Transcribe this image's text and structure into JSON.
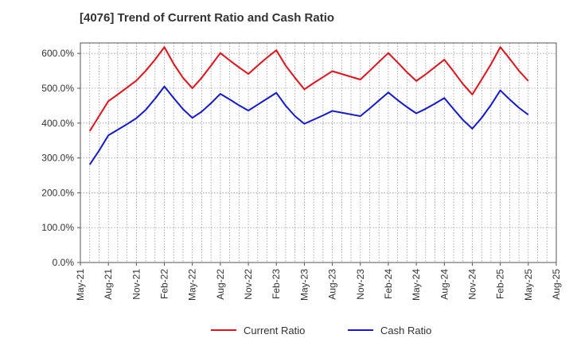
{
  "chart_data": {
    "type": "line",
    "title": "[4076]  Trend of Current Ratio and Cash Ratio",
    "xlabel": "",
    "ylabel": "",
    "ylim": [
      0,
      630
    ],
    "y_ticks": [
      0,
      100,
      200,
      300,
      400,
      500,
      600
    ],
    "y_tick_labels": [
      "0.0%",
      "100.0%",
      "200.0%",
      "300.0%",
      "400.0%",
      "500.0%",
      "600.0%"
    ],
    "x_tick_labels": [
      "May-21",
      "Aug-21",
      "Nov-21",
      "Feb-22",
      "May-22",
      "Aug-22",
      "Nov-22",
      "Feb-23",
      "May-23",
      "Aug-23",
      "Nov-23",
      "Feb-24",
      "May-24",
      "Aug-24",
      "Nov-24",
      "Feb-25",
      "May-25",
      "Aug-25"
    ],
    "x_months": [
      "Jun-21",
      "Jul-21",
      "Aug-21",
      "Sep-21",
      "Oct-21",
      "Nov-21",
      "Dec-21",
      "Jan-22",
      "Feb-22",
      "Mar-22",
      "Apr-22",
      "May-22",
      "Jun-22",
      "Jul-22",
      "Aug-22",
      "Sep-22",
      "Oct-22",
      "Nov-22",
      "Dec-22",
      "Jan-23",
      "Feb-23",
      "Mar-23",
      "Apr-23",
      "May-23",
      "Jun-23",
      "Jul-23",
      "Aug-23",
      "Sep-23",
      "Oct-23",
      "Nov-23",
      "Dec-23",
      "Jan-24",
      "Feb-24",
      "Mar-24",
      "Apr-24",
      "May-24",
      "Jun-24",
      "Jul-24",
      "Aug-24",
      "Sep-24",
      "Oct-24",
      "Nov-24",
      "Dec-24",
      "Jan-25",
      "Feb-25",
      "Mar-25",
      "Apr-25",
      "May-25"
    ],
    "series": [
      {
        "name": "Current Ratio",
        "color": "#e8101a",
        "values": [
          377,
          420,
          463,
          482,
          502,
          522,
          550,
          582,
          618,
          570,
          530,
          500,
          530,
          565,
          601,
          580,
          560,
          541,
          565,
          588,
          609,
          565,
          530,
          497,
          515,
          532,
          549,
          541,
          533,
          525,
          550,
          576,
          601,
          574,
          546,
          521,
          540,
          561,
          582,
          548,
          512,
          482,
          525,
          569,
          618,
          585,
          550,
          521
        ]
      },
      {
        "name": "Cash Ratio",
        "color": "#1418d8",
        "values": [
          281,
          321,
          365,
          381,
          397,
          414,
          438,
          470,
          505,
          472,
          440,
          415,
          433,
          457,
          484,
          468,
          451,
          436,
          453,
          470,
          487,
          450,
          420,
          398,
          410,
          422,
          435,
          430,
          425,
          420,
          442,
          465,
          488,
          466,
          446,
          428,
          441,
          456,
          472,
          440,
          409,
          384,
          415,
          452,
          494,
          468,
          444,
          424
        ]
      }
    ],
    "legend_position": "bottom-center",
    "grid": true
  }
}
